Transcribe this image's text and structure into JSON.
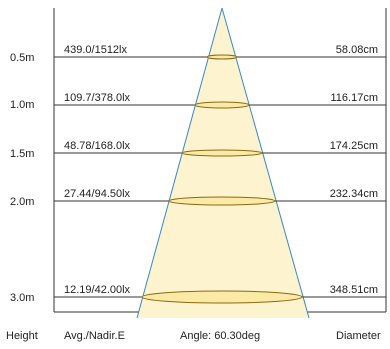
{
  "rows": [
    {
      "height": "0.5m",
      "lux": "439.0/1512lx",
      "diameter": "58.08cm"
    },
    {
      "height": "1.0m",
      "lux": "109.7/378.0lx",
      "diameter": "116.17cm"
    },
    {
      "height": "1.5m",
      "lux": "48.78/168.0lx",
      "diameter": "174.25cm"
    },
    {
      "height": "2.0m",
      "lux": "27.44/94.50lx",
      "diameter": "232.34cm"
    },
    {
      "height": "3.0m",
      "lux": "12.19/42.00lx",
      "diameter": "348.51cm"
    }
  ],
  "footer": {
    "height_label": "Height",
    "lux_label": "Avg./Nadir.E",
    "angle_label": "Angle: 60.30deg",
    "diameter_label": "Diameter"
  },
  "colors": {
    "beam_fill": "#fdf3cf",
    "beam_edge": "#3a86c8",
    "ellipse_fill": "#fbe9a6",
    "ellipse_stroke": "#8a6a12",
    "line": "#333333"
  }
}
